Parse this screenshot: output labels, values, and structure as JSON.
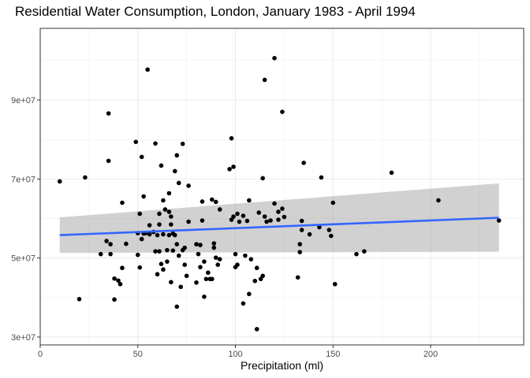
{
  "chart_data": {
    "type": "scatter",
    "title": "Residential Water Consumption, London, January 1983 - April 1994",
    "xlabel": "Precipitation (ml)",
    "ylabel": "",
    "xlim": [
      0,
      240
    ],
    "ylim": [
      28000000,
      104000000
    ],
    "x_ticks": [
      0,
      50,
      100,
      150,
      200
    ],
    "x_tick_labels": [
      "0",
      "50",
      "100",
      "150",
      "200"
    ],
    "y_ticks": [
      30000000,
      50000000,
      70000000,
      90000000
    ],
    "y_tick_labels": [
      "3e+07",
      "5e+07",
      "7e+07",
      "9e+07"
    ],
    "grid": true,
    "colors": {
      "points": "#000000",
      "trend_line": "#3366ff",
      "confidence_band": "#999999",
      "panel_border": "#333333",
      "grid": "#ebebeb"
    },
    "points": [
      [
        10,
        69400000
      ],
      [
        20,
        39600000
      ],
      [
        23,
        70400000
      ],
      [
        31,
        51000000
      ],
      [
        34,
        54300000
      ],
      [
        35,
        74600000
      ],
      [
        35,
        86600000
      ],
      [
        36,
        51000000
      ],
      [
        36,
        53500000
      ],
      [
        38,
        44800000
      ],
      [
        38,
        39500000
      ],
      [
        40,
        44300000
      ],
      [
        41,
        43400000
      ],
      [
        42,
        47500000
      ],
      [
        42,
        64000000
      ],
      [
        44,
        53600000
      ],
      [
        49,
        79400000
      ],
      [
        50,
        56300000
      ],
      [
        50,
        50800000
      ],
      [
        51,
        47600000
      ],
      [
        51,
        61200000
      ],
      [
        52,
        54800000
      ],
      [
        52,
        75600000
      ],
      [
        53,
        65600000
      ],
      [
        53,
        56200000
      ],
      [
        54,
        56300000
      ],
      [
        55,
        97700000
      ],
      [
        56,
        56000000
      ],
      [
        56,
        58300000
      ],
      [
        58,
        56600000
      ],
      [
        59,
        79000000
      ],
      [
        59,
        51700000
      ],
      [
        60,
        45900000
      ],
      [
        60,
        55800000
      ],
      [
        61,
        51700000
      ],
      [
        61,
        61200000
      ],
      [
        61,
        58500000
      ],
      [
        62,
        48500000
      ],
      [
        62,
        73400000
      ],
      [
        63,
        56000000
      ],
      [
        63,
        64600000
      ],
      [
        63,
        47100000
      ],
      [
        64,
        62300000
      ],
      [
        65,
        52000000
      ],
      [
        65,
        49100000
      ],
      [
        66,
        61700000
      ],
      [
        66,
        55800000
      ],
      [
        66,
        66400000
      ],
      [
        67,
        43900000
      ],
      [
        67,
        60500000
      ],
      [
        67,
        58500000
      ],
      [
        68,
        51900000
      ],
      [
        68,
        56200000
      ],
      [
        69,
        72000000
      ],
      [
        69,
        55800000
      ],
      [
        70,
        53500000
      ],
      [
        70,
        76000000
      ],
      [
        70,
        37700000
      ],
      [
        71,
        50600000
      ],
      [
        71,
        69000000
      ],
      [
        72,
        42700000
      ],
      [
        73,
        78900000
      ],
      [
        73,
        52000000
      ],
      [
        74,
        52600000
      ],
      [
        74,
        48300000
      ],
      [
        75,
        45500000
      ],
      [
        76,
        59200000
      ],
      [
        76,
        68300000
      ],
      [
        80,
        53500000
      ],
      [
        80,
        43800000
      ],
      [
        81,
        51000000
      ],
      [
        82,
        53300000
      ],
      [
        82,
        47700000
      ],
      [
        83,
        64300000
      ],
      [
        83,
        59500000
      ],
      [
        84,
        40200000
      ],
      [
        84,
        49100000
      ],
      [
        85,
        44700000
      ],
      [
        86,
        46300000
      ],
      [
        87,
        44700000
      ],
      [
        88,
        64800000
      ],
      [
        88,
        44700000
      ],
      [
        89,
        52600000
      ],
      [
        89,
        53700000
      ],
      [
        90,
        64200000
      ],
      [
        90,
        50100000
      ],
      [
        91,
        48300000
      ],
      [
        92,
        62300000
      ],
      [
        92,
        49700000
      ],
      [
        97,
        72500000
      ],
      [
        98,
        80300000
      ],
      [
        98,
        59700000
      ],
      [
        99,
        73100000
      ],
      [
        99,
        60500000
      ],
      [
        100,
        51000000
      ],
      [
        100,
        47700000
      ],
      [
        101,
        61200000
      ],
      [
        101,
        48300000
      ],
      [
        102,
        59200000
      ],
      [
        104,
        60700000
      ],
      [
        104,
        38500000
      ],
      [
        105,
        50600000
      ],
      [
        106,
        59400000
      ],
      [
        107,
        40900000
      ],
      [
        107,
        64600000
      ],
      [
        108,
        49700000
      ],
      [
        110,
        44200000
      ],
      [
        111,
        32000000
      ],
      [
        111,
        47500000
      ],
      [
        112,
        61500000
      ],
      [
        113,
        44700000
      ],
      [
        114,
        45500000
      ],
      [
        114,
        70200000
      ],
      [
        115,
        95100000
      ],
      [
        115,
        60500000
      ],
      [
        116,
        59200000
      ],
      [
        118,
        59500000
      ],
      [
        120,
        100600000
      ],
      [
        120,
        63800000
      ],
      [
        122,
        59700000
      ],
      [
        122,
        61700000
      ],
      [
        124,
        87000000
      ],
      [
        124,
        62500000
      ],
      [
        125,
        60400000
      ],
      [
        132,
        45100000
      ],
      [
        133,
        53500000
      ],
      [
        133,
        51500000
      ],
      [
        134,
        57100000
      ],
      [
        134,
        59400000
      ],
      [
        135,
        74100000
      ],
      [
        138,
        56000000
      ],
      [
        143,
        57800000
      ],
      [
        144,
        70400000
      ],
      [
        148,
        57100000
      ],
      [
        149,
        55600000
      ],
      [
        150,
        64000000
      ],
      [
        151,
        43400000
      ],
      [
        162,
        51000000
      ],
      [
        166,
        51700000
      ],
      [
        180,
        71600000
      ],
      [
        204,
        64600000
      ],
      [
        235,
        59500000
      ]
    ],
    "trend": {
      "x": [
        10,
        235
      ],
      "y": [
        55800000,
        60200000
      ],
      "ci_upper": [
        60300000,
        68900000
      ],
      "ci_lower": [
        51300000,
        51600000
      ]
    }
  }
}
